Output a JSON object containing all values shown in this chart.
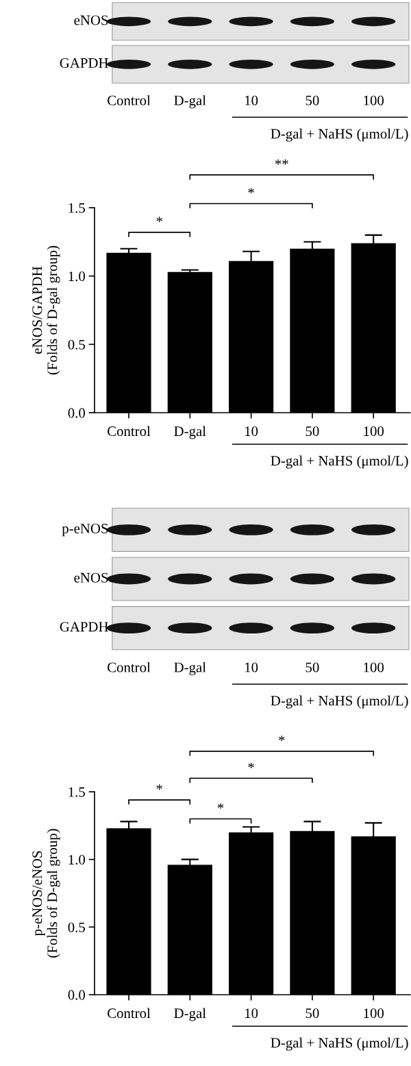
{
  "chart_data": [
    {
      "type": "other",
      "categories": [
        "Control",
        "D-gal",
        "10",
        "50",
        "100"
      ],
      "xlabel": "D-gal + NaHS (μmol/L)",
      "annotations": [
        "eNOS",
        "GAPDH"
      ]
    },
    {
      "type": "bar",
      "categories": [
        "Control",
        "D-gal",
        "10",
        "50",
        "100"
      ],
      "xlabel": "D-gal + NaHS (μmol/L)",
      "ylabel": "eNOS/GAPDH\n(Folds of D-gal group)",
      "values": [
        1.17,
        1.03,
        1.11,
        1.2,
        1.24
      ],
      "errors": [
        0.03,
        0.015,
        0.07,
        0.05,
        0.06
      ],
      "color": "#000000",
      "ylim": [
        0,
        1.5
      ],
      "yticks": [
        {
          "value": 0,
          "label": "0.0"
        },
        {
          "value": 0.5,
          "label": "0.5"
        },
        {
          "value": 1.0,
          "label": "1.0"
        },
        {
          "value": 1.5,
          "label": "1.5"
        }
      ],
      "grid": false,
      "annotations": [
        "*",
        "*",
        "**"
      ]
    },
    {
      "type": "other",
      "categories": [
        "Control",
        "D-gal",
        "10",
        "50",
        "100"
      ],
      "xlabel": "D-gal + NaHS (μmol/L)",
      "annotations": [
        "p-eNOS",
        "eNOS",
        "GAPDH"
      ]
    },
    {
      "type": "bar",
      "categories": [
        "Control",
        "D-gal",
        "10",
        "50",
        "100"
      ],
      "xlabel": "D-gal + NaHS (μmol/L)",
      "ylabel": "p-eNOS/eNOS\n(Folds of D-gal group)",
      "values": [
        1.23,
        0.96,
        1.2,
        1.21,
        1.17
      ],
      "errors": [
        0.05,
        0.04,
        0.04,
        0.07,
        0.1
      ],
      "color": "#000000",
      "ylim": [
        0,
        1.5
      ],
      "yticks": [
        {
          "value": 0,
          "label": "0.0"
        },
        {
          "value": 0.5,
          "label": "0.5"
        },
        {
          "value": 1.0,
          "label": "1.0"
        },
        {
          "value": 1.5,
          "label": "1.5"
        }
      ],
      "grid": false,
      "annotations": [
        "*",
        "*",
        "*",
        "*"
      ]
    }
  ]
}
